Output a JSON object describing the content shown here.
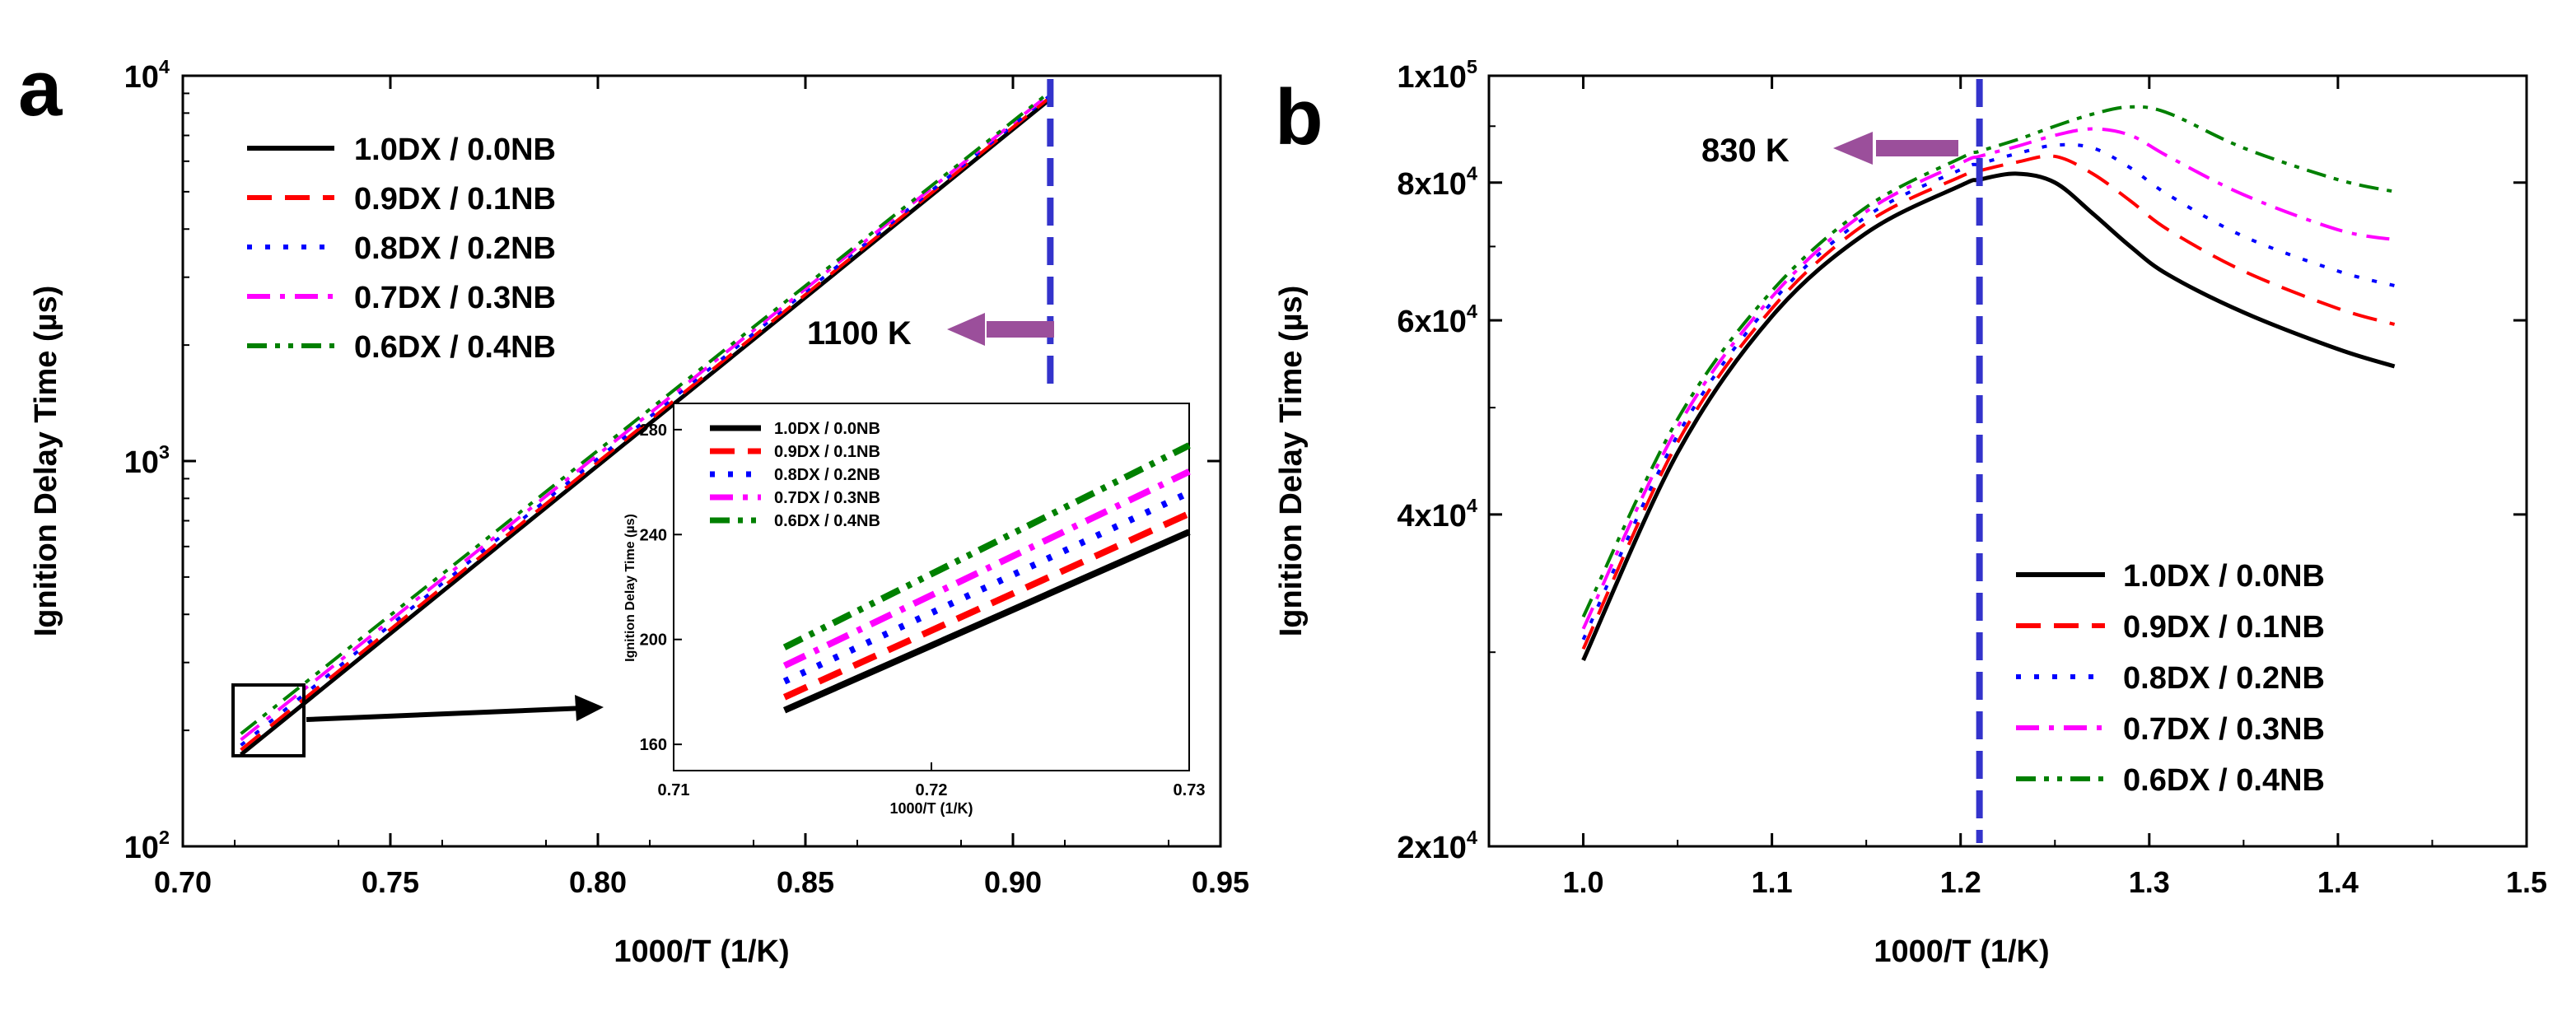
{
  "panel_labels": [
    "a",
    "b"
  ],
  "colors": {
    "series": [
      "#000000",
      "#ff0000",
      "#0000ff",
      "#ff00ff",
      "#008000"
    ],
    "marker_line": "#3333cc",
    "arrow_purple": "#9b4f9b",
    "arrow_black": "#000000"
  },
  "dash": [
    "solid",
    "dash",
    "dot",
    "dashdot",
    "dashdotdot"
  ],
  "chart_data": [
    {
      "type": "line",
      "panel": "a",
      "xlabel": "1000/T (1/K)",
      "ylabel": "Ignition Delay Time (µs)",
      "xlim": [
        0.7,
        0.95
      ],
      "ylim": [
        100,
        10000
      ],
      "yscale": "log",
      "xticks": [
        "0.70",
        "0.75",
        "0.80",
        "0.85",
        "0.90",
        "0.95"
      ],
      "yticks_base": [
        "10",
        "10",
        "10"
      ],
      "yticks_exp": [
        "2",
        "3",
        "4"
      ],
      "legend": [
        "1.0DX / 0.0NB",
        "0.9DX / 0.1NB",
        "0.8DX / 0.2NB",
        "0.7DX / 0.3NB",
        "0.6DX / 0.4NB"
      ],
      "legend_position": "top-left",
      "annotation": "1100 K",
      "vline_x": 0.909,
      "x": [
        0.714,
        0.909
      ],
      "series": [
        {
          "name": "1.0DX / 0.0NB",
          "values": [
            173,
            8700
          ]
        },
        {
          "name": "0.9DX / 0.1NB",
          "values": [
            178,
            8800
          ]
        },
        {
          "name": "0.8DX / 0.2NB",
          "values": [
            183,
            8900
          ]
        },
        {
          "name": "0.7DX / 0.3NB",
          "values": [
            189,
            9000
          ]
        },
        {
          "name": "0.6DX / 0.4NB",
          "values": [
            196,
            9100
          ]
        }
      ],
      "inset": {
        "xlabel": "1000/T (1/K)",
        "ylabel": "Ignition Delay Time (µs)",
        "xlim": [
          0.71,
          0.73
        ],
        "ylim": [
          150,
          290
        ],
        "xticks": [
          "0.71",
          "0.72",
          "0.73"
        ],
        "yticks": [
          "160",
          "200",
          "240",
          "280"
        ],
        "legend": [
          "1.0DX / 0.0NB",
          "0.9DX / 0.1NB",
          "0.8DX / 0.2NB",
          "0.7DX / 0.3NB",
          "0.6DX / 0.4NB"
        ],
        "x": [
          0.7143,
          0.73
        ],
        "series": [
          {
            "name": "1.0DX / 0.0NB",
            "values": [
              173,
              241
            ]
          },
          {
            "name": "0.9DX / 0.1NB",
            "values": [
              178,
              248
            ]
          },
          {
            "name": "0.8DX / 0.2NB",
            "values": [
              184,
              256
            ]
          },
          {
            "name": "0.7DX / 0.3NB",
            "values": [
              190,
              264
            ]
          },
          {
            "name": "0.6DX / 0.4NB",
            "values": [
              197,
              274
            ]
          }
        ]
      }
    },
    {
      "type": "line",
      "panel": "b",
      "xlabel": "1000/T (1/K)",
      "ylabel": "Ignition Delay Time (µs)",
      "xlim": [
        0.95,
        1.5
      ],
      "ylim": [
        20000,
        100000
      ],
      "yscale": "log",
      "xticks": [
        "1.0",
        "1.1",
        "1.2",
        "1.3",
        "1.4",
        "1.5"
      ],
      "yticks_base": [
        "2x10",
        "4x10",
        "6x10",
        "8x10",
        "1x10"
      ],
      "yticks_exp": [
        "4",
        "4",
        "4",
        "4",
        "5"
      ],
      "legend": [
        "1.0DX / 0.0NB",
        "0.9DX / 0.1NB",
        "0.8DX / 0.2NB",
        "0.7DX / 0.3NB",
        "0.6DX / 0.4NB"
      ],
      "legend_position": "bottom-right",
      "annotation": "830 K",
      "vline_x": 1.21,
      "x": [
        1.0,
        1.05,
        1.1,
        1.15,
        1.2,
        1.21,
        1.23,
        1.25,
        1.27,
        1.29,
        1.31,
        1.35,
        1.4,
        1.43
      ],
      "series": [
        {
          "name": "1.0DX / 0.0NB",
          "values": [
            29500,
            45500,
            60500,
            72000,
            79500,
            80500,
            81500,
            80000,
            75000,
            70000,
            66000,
            61000,
            56500,
            54500
          ]
        },
        {
          "name": "0.9DX / 0.1NB",
          "values": [
            30200,
            46500,
            61500,
            73500,
            81000,
            82000,
            83500,
            84500,
            81500,
            77000,
            72500,
            66500,
            61500,
            59500
          ]
        },
        {
          "name": "0.8DX / 0.2NB",
          "values": [
            30800,
            47200,
            62300,
            74500,
            82200,
            83200,
            85000,
            86500,
            86000,
            82500,
            78000,
            71500,
            66500,
            64500
          ]
        },
        {
          "name": "0.7DX / 0.3NB",
          "values": [
            31500,
            48000,
            63000,
            75300,
            83300,
            84500,
            86300,
            88300,
            89500,
            88300,
            84500,
            78000,
            72500,
            71000
          ]
        },
        {
          "name": "0.6DX / 0.4NB",
          "values": [
            32300,
            48800,
            63800,
            76000,
            84200,
            85400,
            87500,
            90000,
            92300,
            93700,
            92500,
            86000,
            80500,
            78500
          ]
        }
      ]
    }
  ]
}
